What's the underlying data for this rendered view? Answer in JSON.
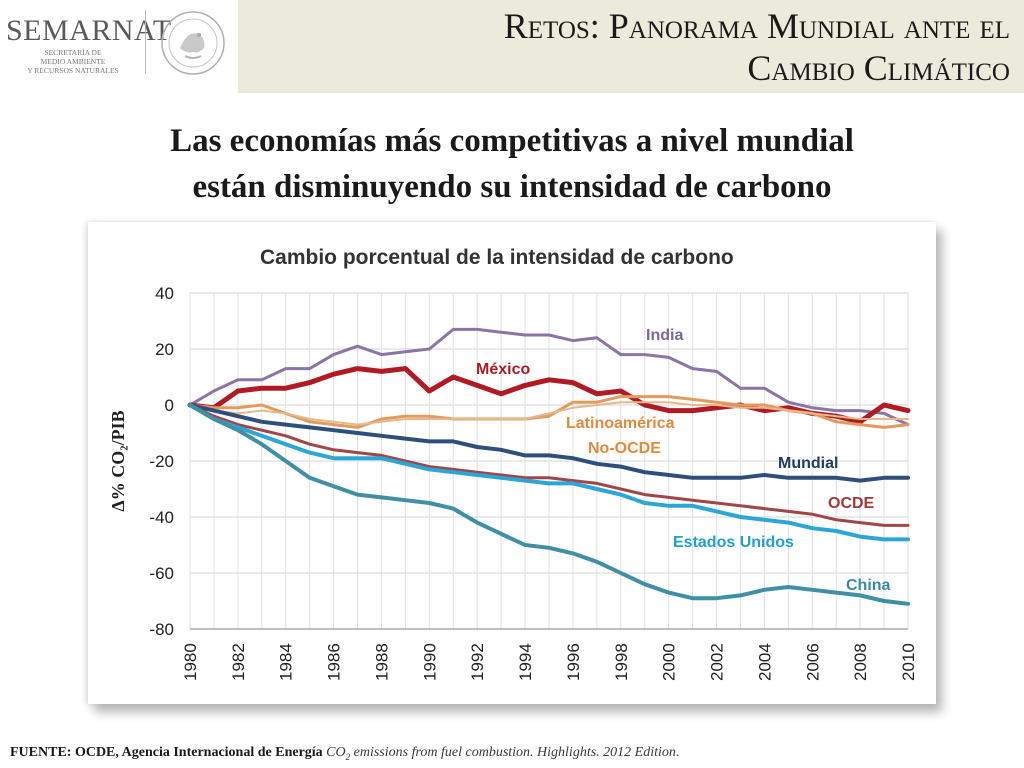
{
  "logo": {
    "word": "SEMARNAT",
    "sub_lines": [
      "SECRETARÍA DE",
      "MEDIO AMBIENTE",
      "Y RECURSOS NATURALES"
    ]
  },
  "slide": {
    "title_line1": "Retos: Panorama Mundial ante el",
    "title_line2": "Cambio Climático",
    "subtitle_line1": "Las economías más competitivas a nivel mundial",
    "subtitle_line2": "están disminuyendo su intensidad de carbono"
  },
  "source": {
    "bold": "FUENTE: OCDE, Agencia Internacional de Energía",
    "italic_co": "CO",
    "italic_sub": "2",
    "italic_rest": " emissions from fuel combustion. Highlights. 2012 Edition",
    "end": "."
  },
  "chart_data": {
    "type": "line",
    "title": "Cambio porcentual  de la intensidad de carbono",
    "ylabel": "Δ% CO₂/PIB",
    "xlabel": "",
    "ylim": [
      -80,
      40
    ],
    "yticks": [
      40,
      20,
      0,
      -20,
      -40,
      -60,
      -80
    ],
    "xlim": [
      1980,
      2010
    ],
    "xticks": [
      "1980",
      "1982",
      "1984",
      "1986",
      "1988",
      "1990",
      "1992",
      "1994",
      "1996",
      "1998",
      "2000",
      "2002",
      "2004",
      "2006",
      "2008",
      "2010"
    ],
    "grid": true,
    "x": [
      1980,
      1981,
      1982,
      1983,
      1984,
      1985,
      1986,
      1987,
      1988,
      1989,
      1990,
      1991,
      1992,
      1993,
      1994,
      1995,
      1996,
      1997,
      1998,
      1999,
      2000,
      2001,
      2002,
      2003,
      2004,
      2005,
      2006,
      2007,
      2008,
      2009,
      2010
    ],
    "series": [
      {
        "name": "India",
        "color": "#8b74a8",
        "width": 3,
        "values": [
          0,
          5,
          9,
          9,
          13,
          13,
          18,
          21,
          18,
          19,
          20,
          27,
          27,
          26,
          25,
          25,
          23,
          24,
          18,
          18,
          17,
          13,
          12,
          6,
          6,
          1,
          -1,
          -2,
          -2,
          -3,
          -7
        ]
      },
      {
        "name": "México",
        "color": "#b11a23",
        "width": 5,
        "values": [
          0,
          -1,
          5,
          6,
          6,
          8,
          11,
          13,
          12,
          13,
          5,
          10,
          7,
          4,
          7,
          9,
          8,
          4,
          5,
          0,
          -2,
          -2,
          -1,
          0,
          -2,
          -1,
          -3,
          -4,
          -6,
          0,
          -2
        ]
      },
      {
        "name": "Latinoamérica",
        "color": "#e39b5d",
        "width": 3,
        "values": [
          0,
          -1,
          -1,
          0,
          -3,
          -6,
          -7,
          -8,
          -5,
          -4,
          -4,
          -5,
          -5,
          -5,
          -5,
          -4,
          1,
          1,
          3,
          3,
          3,
          2,
          1,
          0,
          0,
          -2,
          -3,
          -6,
          -7,
          -8,
          -7
        ]
      },
      {
        "name": "No-OCDE",
        "color": "#e8b88a",
        "width": 2,
        "values": [
          0,
          -2,
          -3,
          -2,
          -3,
          -5,
          -6,
          -7,
          -6,
          -5,
          -5,
          -5,
          -5,
          -5,
          -5,
          -3,
          -1,
          0,
          1,
          1,
          1,
          0,
          0,
          -1,
          -1,
          -2,
          -3,
          -4,
          -5,
          -5,
          -5
        ]
      },
      {
        "name": "Mundial",
        "color": "#2d4f7c",
        "width": 4,
        "values": [
          0,
          -2,
          -4,
          -6,
          -7,
          -8,
          -9,
          -10,
          -11,
          -12,
          -13,
          -13,
          -15,
          -16,
          -18,
          -18,
          -19,
          -21,
          -22,
          -24,
          -25,
          -26,
          -26,
          -26,
          -25,
          -26,
          -26,
          -26,
          -27,
          -26,
          -26
        ]
      },
      {
        "name": "OCDE",
        "color": "#a34545",
        "width": 3,
        "values": [
          0,
          -4,
          -7,
          -9,
          -11,
          -14,
          -16,
          -17,
          -18,
          -20,
          -22,
          -23,
          -24,
          -25,
          -26,
          -26,
          -27,
          -28,
          -30,
          -32,
          -33,
          -34,
          -35,
          -36,
          -37,
          -38,
          -39,
          -41,
          -42,
          -43,
          -43
        ]
      },
      {
        "name": "Estados Unidos",
        "color": "#2aa7d6",
        "width": 4,
        "values": [
          0,
          -5,
          -8,
          -11,
          -14,
          -17,
          -19,
          -19,
          -19,
          -21,
          -23,
          -24,
          -25,
          -26,
          -27,
          -28,
          -28,
          -30,
          -32,
          -35,
          -36,
          -36,
          -38,
          -40,
          -41,
          -42,
          -44,
          -45,
          -47,
          -48,
          -48
        ]
      },
      {
        "name": "China",
        "color": "#3f8fa6",
        "width": 4,
        "values": [
          0,
          -5,
          -9,
          -14,
          -20,
          -26,
          -29,
          -32,
          -33,
          -34,
          -35,
          -37,
          -42,
          -46,
          -50,
          -51,
          -53,
          -56,
          -60,
          -64,
          -67,
          -69,
          -69,
          -68,
          -66,
          -65,
          -66,
          -67,
          -68,
          -70,
          -71
        ]
      }
    ],
    "labels": [
      {
        "series": "India",
        "text": "India",
        "color": "#7e67a0"
      },
      {
        "series": "México",
        "text": "México",
        "color": "#b11a23"
      },
      {
        "series": "Latinoamérica",
        "text": "Latinoamérica",
        "color": "#e08a3c"
      },
      {
        "series": "No-OCDE",
        "text": "No-OCDE",
        "color": "#e08a3c"
      },
      {
        "series": "Mundial",
        "text": "Mundial",
        "color": "#1f3d66"
      },
      {
        "series": "OCDE",
        "text": "OCDE",
        "color": "#a03a3a"
      },
      {
        "series": "Estados Unidos",
        "text": "Estados Unidos",
        "color": "#22a0d2"
      },
      {
        "series": "China",
        "text": "China",
        "color": "#3a8aa3"
      }
    ]
  }
}
